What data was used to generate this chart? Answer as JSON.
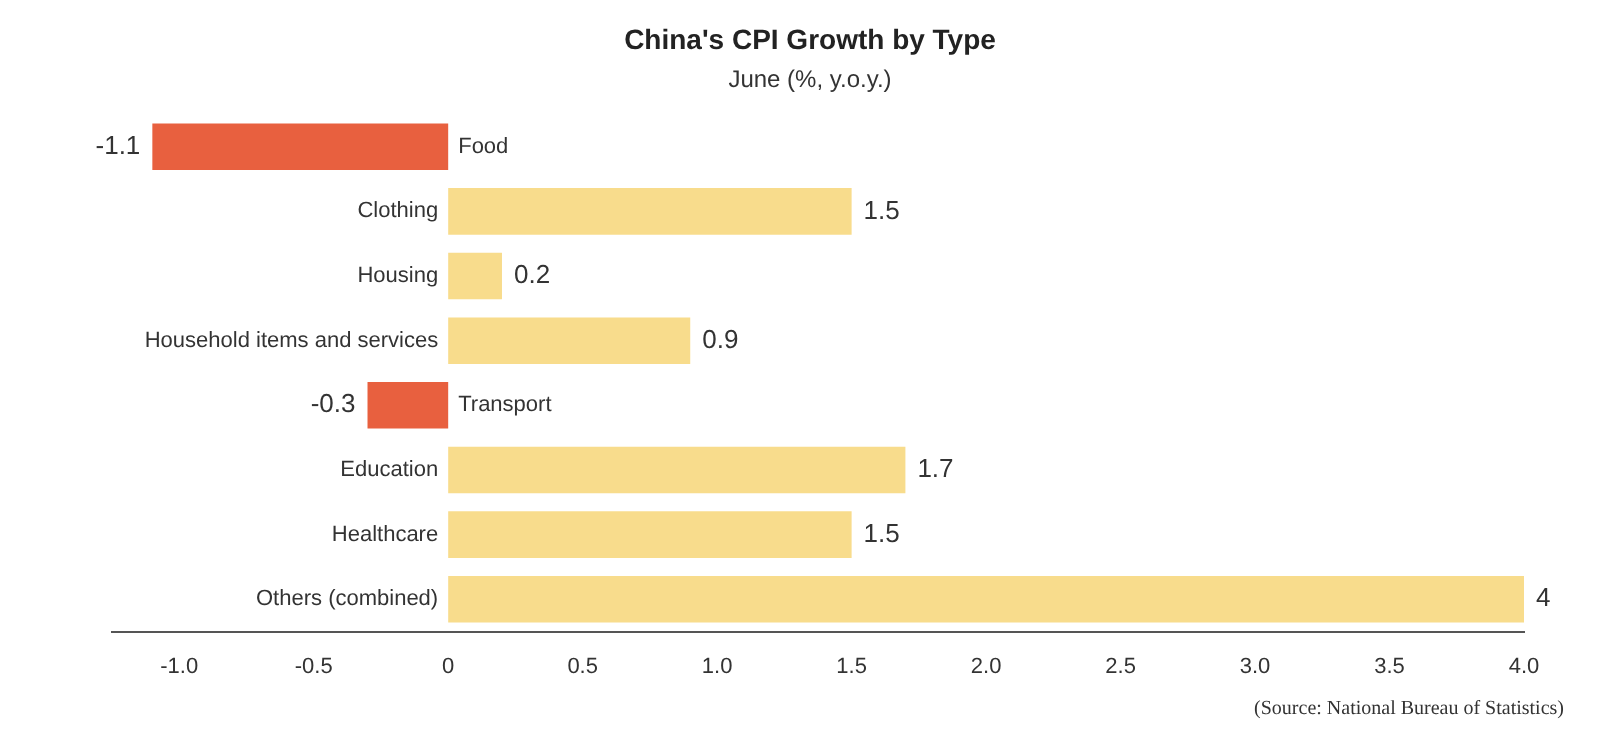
{
  "chart_data": {
    "type": "bar",
    "orientation": "horizontal",
    "title": "China's CPI Growth by Type",
    "subtitle": "June (%, y.o.y.)",
    "categories": [
      "Food",
      "Clothing",
      "Housing",
      "Household items and services",
      "Transport",
      "Education",
      "Healthcare",
      "Others (combined)"
    ],
    "values": [
      -1.1,
      1.5,
      0.2,
      0.9,
      -0.3,
      1.7,
      1.5,
      4
    ],
    "colors": [
      "#e8603f",
      "#f8dc8c",
      "#f8dc8c",
      "#f8dc8c",
      "#e8603f",
      "#f8dc8c",
      "#f8dc8c",
      "#f8dc8c"
    ],
    "xlim": [
      -1.25,
      4
    ],
    "xticks": [
      {
        "value": -1,
        "label": "-1.0"
      },
      {
        "value": -0.5,
        "label": "-0.5"
      },
      0,
      {
        "value": 0.5,
        "label": "0.5"
      },
      {
        "value": 1,
        "label": "1.0"
      },
      {
        "value": 1.5,
        "label": "1.5"
      },
      {
        "value": 2,
        "label": "2.0"
      },
      {
        "value": 2.5,
        "label": "2.5"
      },
      {
        "value": 3,
        "label": "3.0"
      },
      {
        "value": 3.5,
        "label": "3.5"
      },
      {
        "value": 4,
        "label": "4.0"
      }
    ],
    "data_labels": true,
    "grid": false,
    "legend": false,
    "annotations": [
      "(Source: National Bureau of Statistics)"
    ]
  }
}
